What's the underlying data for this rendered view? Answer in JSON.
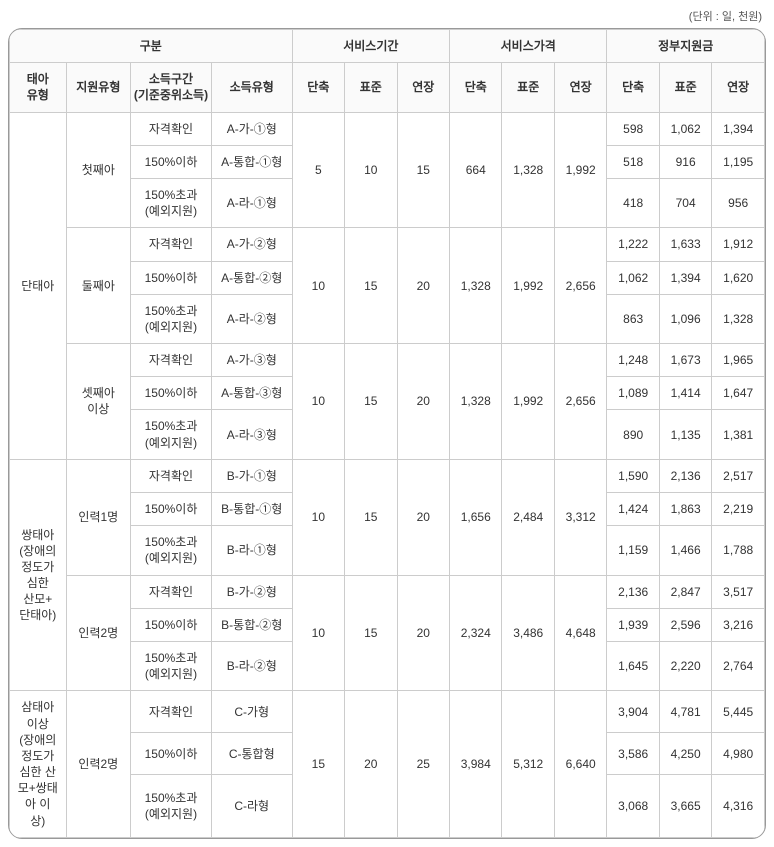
{
  "unit": "(단위 : 일, 천원)",
  "headers": {
    "gubun": "구분",
    "period": "서비스기간",
    "price": "서비스가격",
    "subsidy": "정부지원금",
    "fetal": "태아\n유형",
    "birth": "지원유형",
    "incomeBand": "소득구간\n(기준중위소득)",
    "incomeType": "소득유형",
    "short": "단축",
    "std": "표준",
    "ext": "연장"
  },
  "incomeLabels": {
    "check": "자격확인",
    "le150": "150%이하",
    "gt150": "150%초과\n(예외지원)"
  },
  "blocks": [
    {
      "fetal": "단태아",
      "births": [
        {
          "birth": "첫째아",
          "typeCodes": [
            "A-가-①형",
            "A-통합-①형",
            "A-라-①형"
          ],
          "period": [
            5,
            10,
            15
          ],
          "price": [
            664,
            1328,
            1992
          ],
          "subsidy": [
            [
              598,
              1062,
              1394
            ],
            [
              518,
              916,
              1195
            ],
            [
              418,
              704,
              956
            ]
          ]
        },
        {
          "birth": "둘째아",
          "typeCodes": [
            "A-가-②형",
            "A-통합-②형",
            "A-라-②형"
          ],
          "period": [
            10,
            15,
            20
          ],
          "price": [
            1328,
            1992,
            2656
          ],
          "subsidy": [
            [
              1222,
              1633,
              1912
            ],
            [
              1062,
              1394,
              1620
            ],
            [
              863,
              1096,
              1328
            ]
          ]
        },
        {
          "birth": "셋째아\n이상",
          "typeCodes": [
            "A-가-③형",
            "A-통합-③형",
            "A-라-③형"
          ],
          "period": [
            10,
            15,
            20
          ],
          "price": [
            1328,
            1992,
            2656
          ],
          "subsidy": [
            [
              1248,
              1673,
              1965
            ],
            [
              1089,
              1414,
              1647
            ],
            [
              890,
              1135,
              1381
            ]
          ]
        }
      ]
    },
    {
      "fetal": "쌍태아\n(장애의\n정도가\n심한\n산모+\n단태아)",
      "births": [
        {
          "birth": "인력1명",
          "typeCodes": [
            "B-가-①형",
            "B-통합-①형",
            "B-라-①형"
          ],
          "period": [
            10,
            15,
            20
          ],
          "price": [
            1656,
            2484,
            3312
          ],
          "subsidy": [
            [
              1590,
              2136,
              2517
            ],
            [
              1424,
              1863,
              2219
            ],
            [
              1159,
              1466,
              1788
            ]
          ]
        },
        {
          "birth": "인력2명",
          "typeCodes": [
            "B-가-②형",
            "B-통합-②형",
            "B-라-②형"
          ],
          "period": [
            10,
            15,
            20
          ],
          "price": [
            2324,
            3486,
            4648
          ],
          "subsidy": [
            [
              2136,
              2847,
              3517
            ],
            [
              1939,
              2596,
              3216
            ],
            [
              1645,
              2220,
              2764
            ]
          ]
        }
      ]
    },
    {
      "fetal": "삼태아\n이상\n(장애의\n정도가\n심한 산\n모+쌍태\n아 이\n상)",
      "births": [
        {
          "birth": "인력2명",
          "typeCodes": [
            "C-가형",
            "C-통합형",
            "C-라형"
          ],
          "period": [
            15,
            20,
            25
          ],
          "price": [
            3984,
            5312,
            6640
          ],
          "subsidy": [
            [
              3904,
              4781,
              5445
            ],
            [
              3586,
              4250,
              4980
            ],
            [
              3068,
              3665,
              4316
            ]
          ]
        }
      ]
    }
  ]
}
